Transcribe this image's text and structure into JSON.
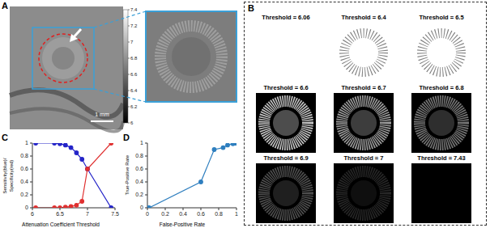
{
  "panel_a": {
    "label": "A",
    "colorbar": {
      "range": [
        6,
        7.4
      ],
      "ticks": [
        6,
        6.2,
        6.4,
        6.6,
        6.8,
        7,
        7.2,
        7.4
      ]
    },
    "scale_bar": "1 mm"
  },
  "panel_b": {
    "label": "B",
    "tiles": [
      "Threshold = 6.06",
      "Threshold = 6.4",
      "Threshold = 6.5",
      "Threshold = 6.6",
      "Threshold = 6.7",
      "Threshold = 6.8",
      "Threshold = 6.9",
      "Threshold = 7",
      "Threshold = 7.43"
    ]
  },
  "chart_data": [
    {
      "panel": "C",
      "type": "line",
      "xlabel": "Attenuation Coefficient Threshold",
      "ylabel": "Sensitivity(blue)/Specificity(red)",
      "x": [
        6.06,
        6.4,
        6.5,
        6.6,
        6.7,
        6.8,
        6.9,
        7,
        7.43
      ],
      "series": [
        {
          "color": "#2424c8",
          "marker": "circle",
          "values": [
            1,
            1,
            0.99,
            0.97,
            0.93,
            0.85,
            0.75,
            0.6,
            0
          ]
        },
        {
          "color": "#e03030",
          "marker": "circle",
          "values": [
            0,
            0,
            0,
            0.01,
            0.02,
            0.04,
            0.1,
            0.6,
            1
          ]
        }
      ],
      "xlim": [
        6,
        7.5
      ],
      "xticks": [
        6,
        6.5,
        7,
        7.5
      ],
      "ylim": [
        0,
        1
      ],
      "yticks": [
        0,
        0.2,
        0.4,
        0.6,
        0.8,
        1
      ]
    },
    {
      "panel": "D",
      "type": "line",
      "xlabel": "False-Positive Rate",
      "ylabel": "True-Positive Rate",
      "x": [
        0,
        0.02,
        0.6,
        0.75,
        0.85,
        0.9,
        0.96,
        0.99,
        1
      ],
      "series": [
        {
          "color": "#2f7fbf",
          "marker": "circle",
          "values": [
            0,
            0,
            0.4,
            0.9,
            0.93,
            0.97,
            0.99,
            1,
            1
          ]
        }
      ],
      "xlim": [
        0,
        1
      ],
      "xticks": [
        0,
        0.2,
        0.4,
        0.6,
        0.8,
        1
      ],
      "ylim": [
        0,
        1
      ],
      "yticks": [
        0,
        0.2,
        0.4,
        0.6,
        0.8,
        1
      ]
    }
  ]
}
